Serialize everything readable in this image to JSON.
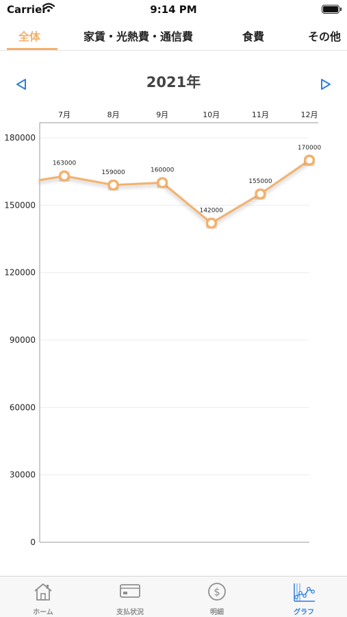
{
  "status_bar": {
    "carrier": "Carrier",
    "time": "9:14 PM"
  },
  "tabs": [
    {
      "label": "全体",
      "active": true
    },
    {
      "label": "家賃・光熱費・通信費",
      "active": false
    },
    {
      "label": "食費",
      "active": false
    },
    {
      "label": "その他",
      "active": false
    }
  ],
  "header": {
    "year": "2021年",
    "prev_icon": "triangle-left-outline",
    "next_icon": "triangle-right-outline"
  },
  "colors": {
    "accent": "#f4b06a",
    "nav_blue": "#2a7de1",
    "inactive_gray": "#8e8e8e"
  },
  "chart_data": {
    "type": "line",
    "categories": [
      "7月",
      "8月",
      "9月",
      "10月",
      "11月",
      "12月"
    ],
    "values": [
      163000,
      159000,
      160000,
      142000,
      155000,
      170000
    ],
    "data_labels": [
      "163000",
      "159000",
      "160000",
      "142000",
      "155000",
      "170000"
    ],
    "y_ticks": [
      "0",
      "30000",
      "60000",
      "90000",
      "120000",
      "150000",
      "180000"
    ],
    "ylim": [
      0,
      180000
    ],
    "x_axis_position": "top",
    "grid": true,
    "title": "",
    "xlabel": "",
    "ylabel": ""
  },
  "tabbar": [
    {
      "label": "ホーム",
      "icon": "house-icon",
      "active": false
    },
    {
      "label": "支払状況",
      "icon": "credit-card-icon",
      "active": false
    },
    {
      "label": "明細",
      "icon": "dollar-circle-icon",
      "active": false
    },
    {
      "label": "グラフ",
      "icon": "line-graph-icon",
      "active": true
    }
  ]
}
